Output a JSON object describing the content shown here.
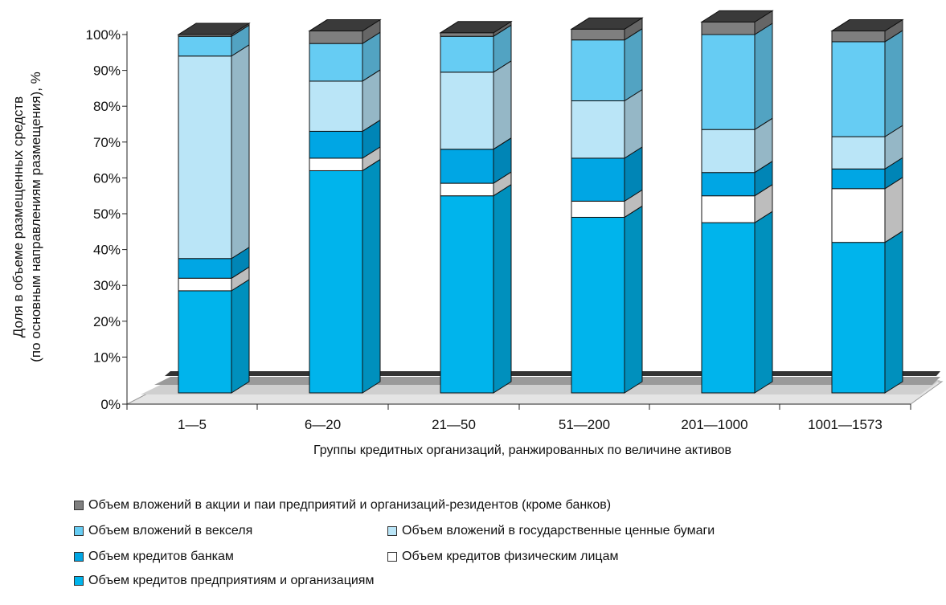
{
  "chart_data": {
    "type": "bar",
    "stacked": true,
    "three_d": true,
    "title": "",
    "xlabel": "Группы кредитных организаций, ранжированных по величине активов",
    "ylabel_line1": "Доля в объеме размещенных средств",
    "ylabel_line2": "(по основным направлениям размещения), %",
    "ylim": [
      0,
      100
    ],
    "yticks": [
      "0%",
      "10%",
      "20%",
      "30%",
      "40%",
      "50%",
      "60%",
      "70%",
      "80%",
      "90%",
      "100%"
    ],
    "categories": [
      "1—5",
      "6—20",
      "21—50",
      "51—200",
      "201—1000",
      "1001—1573"
    ],
    "legend_position": "bottom",
    "series": [
      {
        "name": "Объем кредитов предприятиям и организациям",
        "color": "#00B4EC",
        "values": [
          28.5,
          62,
          55,
          49,
          47.5,
          42
        ]
      },
      {
        "name": "Объем кредитов физическим лицам",
        "color": "#FFFFFF",
        "values": [
          3.5,
          3.5,
          3.5,
          4.5,
          7.5,
          15
        ]
      },
      {
        "name": "Объем кредитов банкам",
        "color": "#00A6E4",
        "values": [
          5.5,
          7.5,
          9.5,
          12,
          6.5,
          5.5
        ]
      },
      {
        "name": "Объем вложений в государственные ценные бумаги",
        "color": "#BAE5F7",
        "values": [
          56.5,
          14,
          21.5,
          16,
          12,
          9
        ]
      },
      {
        "name": "Объем вложений в векселя",
        "color": "#66CCF3",
        "values": [
          5.5,
          10.5,
          10,
          17,
          26.5,
          26.5
        ]
      },
      {
        "name": "Объем вложений в акции и паи предприятий и организаций-резидентов (кроме банков)",
        "color": "#7F7F7F",
        "values": [
          0.5,
          3.5,
          1,
          3,
          3.5,
          3
        ]
      }
    ]
  }
}
